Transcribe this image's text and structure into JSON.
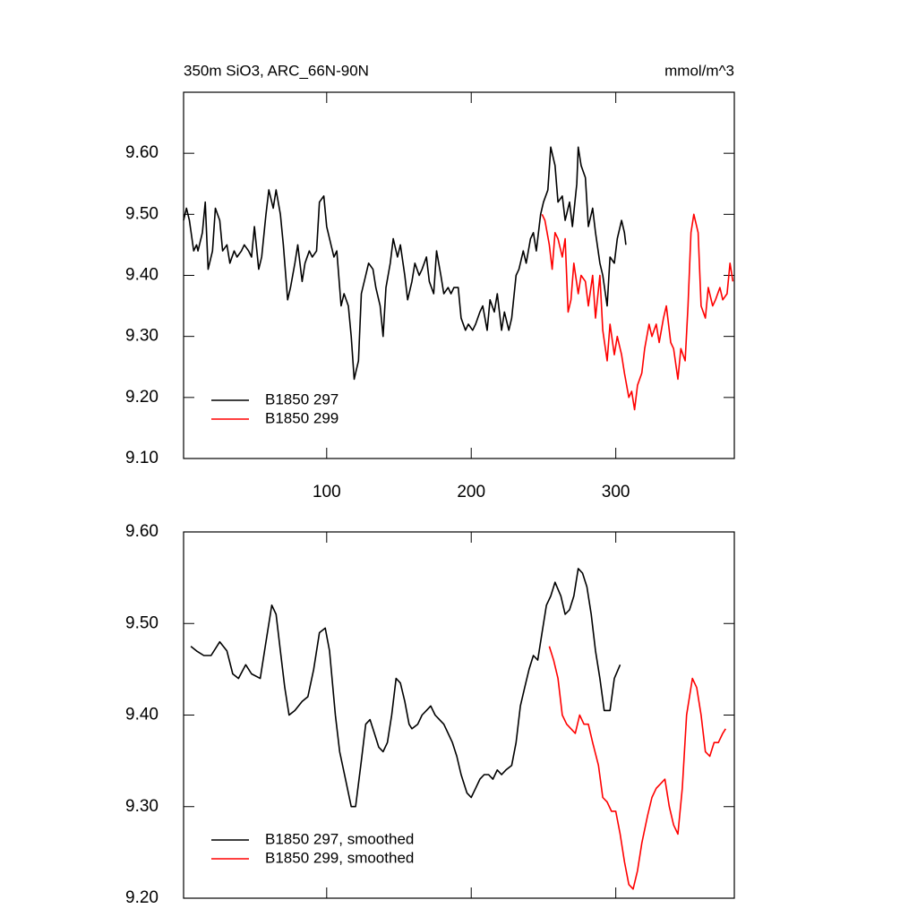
{
  "chart_data": [
    {
      "type": "line",
      "title": "350m SiO3, ARC_66N-90N",
      "units": "mmol/m^3",
      "xlim": [
        1,
        382
      ],
      "xticks": [
        100,
        200,
        300
      ],
      "ylim": [
        9.1,
        9.7
      ],
      "yticks": [
        {
          "value": 9.1,
          "label": "9.10"
        },
        {
          "value": 9.2,
          "label": "9.20"
        },
        {
          "value": 9.3,
          "label": "9.30"
        },
        {
          "value": 9.4,
          "label": "9.40"
        },
        {
          "value": 9.5,
          "label": "9.50"
        },
        {
          "value": 9.6,
          "label": "9.60"
        }
      ],
      "legend": "lower left",
      "series": [
        {
          "name": "B1850 297",
          "color": "#000000",
          "x": [
            1,
            3,
            5,
            8,
            10,
            11,
            14,
            16,
            18,
            21,
            23,
            26,
            28,
            31,
            33,
            36,
            38,
            41,
            43,
            46,
            48,
            50,
            53,
            55,
            58,
            60,
            63,
            65,
            68,
            70,
            73,
            75,
            78,
            80,
            83,
            85,
            88,
            90,
            93,
            95,
            98,
            100,
            102,
            105,
            107,
            110,
            112,
            115,
            117,
            119,
            122,
            124,
            127,
            129,
            132,
            134,
            137,
            139,
            141,
            144,
            146,
            149,
            151,
            154,
            156,
            159,
            161,
            164,
            166,
            169,
            171,
            174,
            176,
            179,
            181,
            184,
            186,
            188,
            191,
            193,
            196,
            198,
            201,
            203,
            206,
            208,
            211,
            213,
            216,
            218,
            221,
            223,
            226,
            228,
            231,
            233,
            236,
            238,
            241,
            243,
            245,
            248,
            250,
            253,
            255,
            258,
            260,
            263,
            265,
            268,
            270,
            273,
            274,
            276,
            279,
            281,
            284,
            286,
            289,
            291,
            294,
            296,
            299,
            301,
            304,
            306,
            307
          ],
          "values": [
            9.49,
            9.51,
            9.49,
            9.44,
            9.45,
            9.44,
            9.47,
            9.52,
            9.41,
            9.44,
            9.51,
            9.49,
            9.44,
            9.45,
            9.42,
            9.44,
            9.43,
            9.44,
            9.45,
            9.44,
            9.43,
            9.48,
            9.41,
            9.43,
            9.5,
            9.54,
            9.51,
            9.54,
            9.5,
            9.45,
            9.36,
            9.38,
            9.42,
            9.45,
            9.39,
            9.42,
            9.44,
            9.43,
            9.44,
            9.52,
            9.53,
            9.48,
            9.46,
            9.43,
            9.44,
            9.35,
            9.37,
            9.35,
            9.3,
            9.23,
            9.26,
            9.37,
            9.4,
            9.42,
            9.41,
            9.38,
            9.35,
            9.3,
            9.38,
            9.42,
            9.46,
            9.43,
            9.45,
            9.4,
            9.36,
            9.39,
            9.42,
            9.4,
            9.41,
            9.43,
            9.39,
            9.37,
            9.44,
            9.4,
            9.37,
            9.38,
            9.37,
            9.38,
            9.38,
            9.33,
            9.31,
            9.32,
            9.31,
            9.32,
            9.34,
            9.35,
            9.31,
            9.36,
            9.34,
            9.37,
            9.31,
            9.34,
            9.31,
            9.33,
            9.4,
            9.41,
            9.44,
            9.42,
            9.46,
            9.47,
            9.44,
            9.5,
            9.52,
            9.54,
            9.61,
            9.58,
            9.52,
            9.53,
            9.49,
            9.52,
            9.48,
            9.55,
            9.61,
            9.58,
            9.56,
            9.48,
            9.51,
            9.47,
            9.42,
            9.4,
            9.35,
            9.43,
            9.42,
            9.46,
            9.49,
            9.47,
            9.45
          ]
        },
        {
          "name": "B1850 299",
          "color": "#ff0000",
          "x": [
            249,
            251,
            254,
            256,
            258,
            260,
            263,
            265,
            267,
            269,
            271,
            274,
            276,
            279,
            281,
            284,
            286,
            289,
            291,
            294,
            296,
            299,
            301,
            304,
            306,
            309,
            311,
            313,
            315,
            318,
            320,
            323,
            325,
            328,
            330,
            333,
            335,
            338,
            340,
            343,
            345,
            348,
            350,
            352,
            354,
            357,
            359,
            362,
            364,
            367,
            369,
            372,
            374,
            377,
            379,
            381
          ],
          "values": [
            9.5,
            9.49,
            9.45,
            9.41,
            9.47,
            9.46,
            9.43,
            9.46,
            9.34,
            9.36,
            9.42,
            9.37,
            9.4,
            9.39,
            9.35,
            9.4,
            9.33,
            9.4,
            9.31,
            9.26,
            9.32,
            9.27,
            9.3,
            9.27,
            9.24,
            9.2,
            9.21,
            9.18,
            9.22,
            9.24,
            9.28,
            9.32,
            9.3,
            9.32,
            9.29,
            9.33,
            9.35,
            9.29,
            9.28,
            9.23,
            9.28,
            9.26,
            9.35,
            9.47,
            9.5,
            9.47,
            9.35,
            9.33,
            9.38,
            9.35,
            9.36,
            9.38,
            9.36,
            9.37,
            9.42,
            9.39
          ]
        }
      ]
    },
    {
      "type": "line",
      "xlim": [
        1,
        382
      ],
      "ylim": [
        9.2,
        9.6
      ],
      "yticks": [
        {
          "value": 9.2,
          "label": "9.20"
        },
        {
          "value": 9.3,
          "label": "9.30"
        },
        {
          "value": 9.4,
          "label": "9.40"
        },
        {
          "value": 9.5,
          "label": "9.50"
        },
        {
          "value": 9.6,
          "label": "9.60"
        }
      ],
      "legend": "lower left",
      "series": [
        {
          "name": "B1850 297, smoothed",
          "color": "#000000",
          "x": [
            6,
            10,
            15,
            20,
            26,
            31,
            35,
            39,
            44,
            48,
            54,
            58,
            62,
            65,
            68,
            71,
            74,
            78,
            83,
            87,
            91,
            95,
            99,
            102,
            106,
            109,
            113,
            117,
            120,
            124,
            127,
            130,
            133,
            136,
            139,
            142,
            145,
            148,
            151,
            154,
            157,
            159,
            163,
            166,
            169,
            172,
            175,
            178,
            181,
            184,
            187,
            190,
            193,
            197,
            200,
            203,
            206,
            209,
            212,
            215,
            218,
            221,
            224,
            228,
            231,
            234,
            237,
            240,
            243,
            246,
            249,
            252,
            255,
            258,
            262,
            265,
            268,
            271,
            274,
            277,
            280,
            283,
            286,
            289,
            292,
            296,
            299,
            303
          ],
          "values": [
            9.475,
            9.47,
            9.465,
            9.465,
            9.48,
            9.47,
            9.445,
            9.44,
            9.455,
            9.445,
            9.44,
            9.48,
            9.52,
            9.51,
            9.47,
            9.43,
            9.4,
            9.405,
            9.415,
            9.42,
            9.45,
            9.49,
            9.495,
            9.47,
            9.4,
            9.36,
            9.33,
            9.3,
            9.3,
            9.35,
            9.39,
            9.395,
            9.38,
            9.365,
            9.36,
            9.37,
            9.4,
            9.44,
            9.435,
            9.415,
            9.39,
            9.385,
            9.39,
            9.4,
            9.405,
            9.41,
            9.4,
            9.395,
            9.39,
            9.38,
            9.37,
            9.355,
            9.335,
            9.315,
            9.31,
            9.32,
            9.33,
            9.335,
            9.335,
            9.33,
            9.34,
            9.335,
            9.34,
            9.345,
            9.37,
            9.41,
            9.43,
            9.45,
            9.465,
            9.46,
            9.49,
            9.52,
            9.53,
            9.545,
            9.53,
            9.51,
            9.515,
            9.53,
            9.56,
            9.555,
            9.54,
            9.51,
            9.47,
            9.44,
            9.405,
            9.405,
            9.44,
            9.455
          ]
        },
        {
          "name": "B1850 299, smoothed",
          "color": "#ff0000",
          "x": [
            254,
            257,
            260,
            263,
            266,
            269,
            272,
            275,
            278,
            281,
            284,
            288,
            291,
            294,
            297,
            300,
            303,
            306,
            309,
            312,
            315,
            318,
            322,
            325,
            328,
            331,
            334,
            337,
            340,
            343,
            346,
            349,
            353,
            356,
            359,
            362,
            365,
            368,
            371,
            374,
            376
          ],
          "values": [
            9.475,
            9.46,
            9.44,
            9.4,
            9.39,
            9.385,
            9.38,
            9.4,
            9.39,
            9.39,
            9.37,
            9.345,
            9.31,
            9.305,
            9.295,
            9.295,
            9.27,
            9.24,
            9.215,
            9.21,
            9.23,
            9.26,
            9.29,
            9.31,
            9.32,
            9.325,
            9.33,
            9.3,
            9.28,
            9.27,
            9.32,
            9.4,
            9.44,
            9.43,
            9.4,
            9.36,
            9.355,
            9.37,
            9.37,
            9.38,
            9.385
          ]
        }
      ]
    }
  ]
}
